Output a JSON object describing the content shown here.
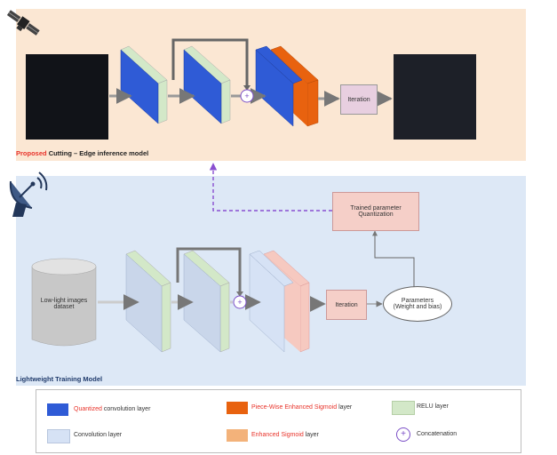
{
  "top_panel": {
    "title_highlight": "Proposed",
    "title_rest": "Cutting – Edge inference model",
    "iteration_label": "Iteration"
  },
  "bottom_panel": {
    "title": "Lightweight Training Model",
    "dataset_label": "Low-light images dataset",
    "iteration_label": "Iteration",
    "parameters_label": "Parameters (Weight and bias)",
    "quantization_label": "Trained parameter Quantization"
  },
  "legend": {
    "quantized_highlight": "Quantized",
    "quantized_rest": "convolution layer",
    "convolution": "Convolution layer",
    "piecewise_highlight": "Piece-Wise Enhanced Sigmoid",
    "piecewise_rest": "layer",
    "enhanced_highlight": "Enhanced Sigmoid",
    "enhanced_rest": "layer",
    "relu": "RELU layer",
    "concatenation": "Concatenation",
    "concat_symbol": "+"
  },
  "colors": {
    "quantized_conv": "#2f5bd6",
    "convolution": "#d6e2f5",
    "piecewise_sigmoid": "#e8620f",
    "enhanced_sigmoid": "#f3b27a",
    "relu": "#d3e8c8",
    "concat": "#7b4fc7",
    "flow_dashed": "#8a4fd0"
  },
  "icons": [
    "satellite-icon",
    "satellite-dish-icon"
  ]
}
